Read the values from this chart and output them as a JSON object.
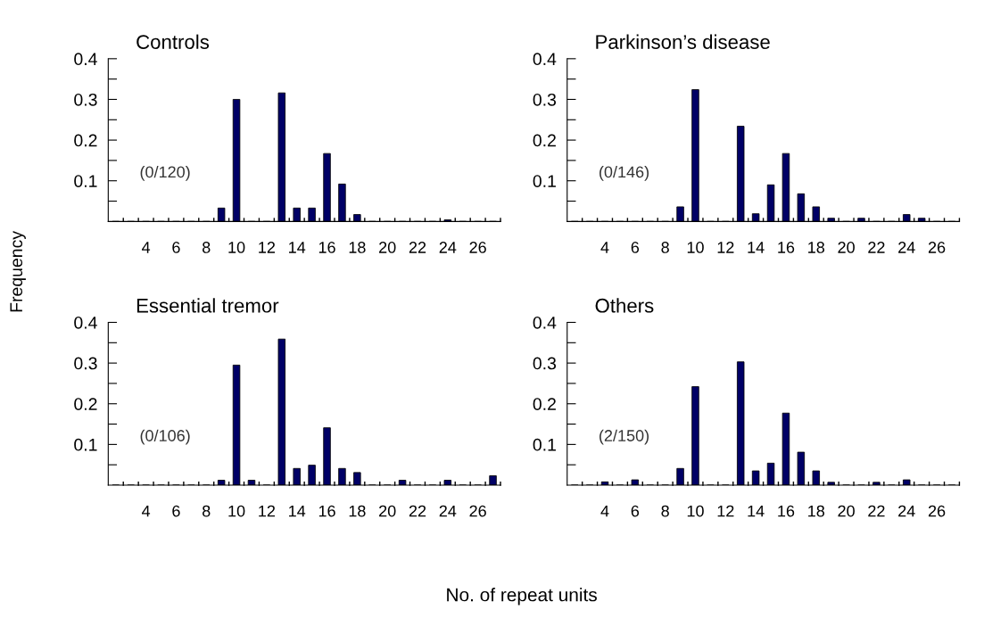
{
  "chart_data": [
    {
      "type": "bar",
      "title": "Controls",
      "ylabel": "Frequency",
      "annotations": [
        "(0/120)"
      ],
      "categories": [
        null,
        null,
        "4",
        null,
        "6",
        null,
        "8",
        null,
        "10",
        null,
        "12",
        null,
        "14",
        null,
        "16",
        null,
        "18",
        null,
        "20",
        null,
        "22",
        null,
        "24",
        null,
        "26",
        null
      ],
      "color": "#000066",
      "values": [
        0,
        0,
        0,
        0,
        0,
        0,
        0,
        0.033,
        0.3,
        0,
        0,
        0.316,
        0.033,
        0.033,
        0.167,
        0.092,
        0.017,
        0,
        0,
        0,
        0,
        0,
        0.004,
        0,
        0,
        0
      ],
      "ylim": [
        0,
        0.4
      ],
      "yticks": [
        {
          "value": 0.05,
          "label": null
        },
        0.1,
        {
          "value": 0.15,
          "label": null
        },
        0.2,
        {
          "value": 0.25,
          "label": null
        },
        0.3,
        {
          "value": 0.35,
          "label": null
        },
        0.4
      ],
      "grid": false,
      "legend": false
    },
    {
      "type": "bar",
      "title": "Parkinson’s disease",
      "annotations": [
        "(0/146)"
      ],
      "categories": [
        null,
        null,
        "4",
        null,
        "6",
        null,
        "8",
        null,
        "10",
        null,
        "12",
        null,
        "14",
        null,
        "16",
        null,
        "18",
        null,
        "20",
        null,
        "22",
        null,
        "24",
        null,
        "26",
        null
      ],
      "color": "#000066",
      "values": [
        0,
        0,
        0,
        0,
        0,
        0,
        0,
        0.036,
        0.324,
        0,
        0,
        0.234,
        0.019,
        0.09,
        0.167,
        0.068,
        0.036,
        0.008,
        0,
        0.008,
        0,
        0,
        0.017,
        0.008,
        0,
        0
      ],
      "ylim": [
        0,
        0.4
      ],
      "yticks": [
        {
          "value": 0.05,
          "label": null
        },
        0.1,
        {
          "value": 0.15,
          "label": null
        },
        0.2,
        {
          "value": 0.25,
          "label": null
        },
        0.3,
        {
          "value": 0.35,
          "label": null
        },
        0.4
      ],
      "grid": false,
      "legend": false
    },
    {
      "type": "bar",
      "title": "Essential tremor",
      "xlabel": "No. of repeat units",
      "annotations": [
        "(0/106)"
      ],
      "categories": [
        null,
        null,
        "4",
        null,
        "6",
        null,
        "8",
        null,
        "10",
        null,
        "12",
        null,
        "14",
        null,
        "16",
        null,
        "18",
        null,
        "20",
        null,
        "22",
        null,
        "24",
        null,
        "26",
        null
      ],
      "color": "#000066",
      "values": [
        0,
        0,
        0,
        0,
        0,
        0,
        0,
        0.012,
        0.295,
        0.012,
        0,
        0.359,
        0.041,
        0.049,
        0.141,
        0.041,
        0.031,
        0,
        0,
        0.012,
        0,
        0,
        0.012,
        0,
        0,
        0.023
      ],
      "ylim": [
        0,
        0.4
      ],
      "yticks": [
        {
          "value": 0.05,
          "label": null
        },
        0.1,
        {
          "value": 0.15,
          "label": null
        },
        0.2,
        {
          "value": 0.25,
          "label": null
        },
        0.3,
        {
          "value": 0.35,
          "label": null
        },
        0.4
      ],
      "grid": false,
      "legend": false
    },
    {
      "type": "bar",
      "title": "Others",
      "annotations": [
        "(2/150)"
      ],
      "categories": [
        null,
        null,
        "4",
        null,
        "6",
        null,
        "8",
        null,
        "10",
        null,
        "12",
        null,
        "14",
        null,
        "16",
        null,
        "18",
        null,
        "20",
        null,
        "22",
        null,
        "24",
        null,
        "26",
        null
      ],
      "color": "#000066",
      "values": [
        0,
        0,
        0.008,
        0,
        0.013,
        0,
        0,
        0.041,
        0.242,
        0,
        0,
        0.303,
        0.035,
        0.054,
        0.177,
        0.081,
        0.035,
        0.007,
        0,
        0,
        0.007,
        0,
        0.013,
        0,
        0,
        0
      ],
      "ylim": [
        0,
        0.4
      ],
      "yticks": [
        {
          "value": 0.05,
          "label": null
        },
        0.1,
        {
          "value": 0.15,
          "label": null
        },
        0.2,
        {
          "value": 0.25,
          "label": null
        },
        0.3,
        {
          "value": 0.35,
          "label": null
        },
        0.4
      ],
      "grid": false,
      "legend": false
    }
  ]
}
